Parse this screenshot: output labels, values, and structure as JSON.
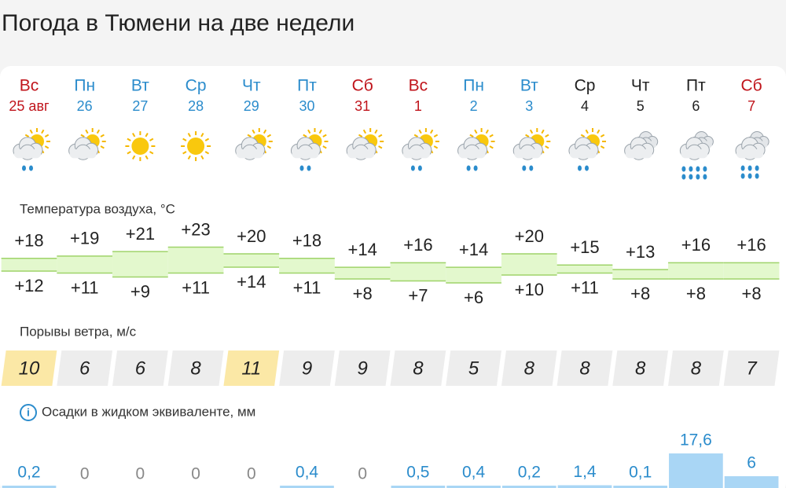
{
  "title": "Погода в Тюмени на две недели",
  "labels": {
    "temperature": "Температура воздуха, °C",
    "wind": "Порывы ветра, м/с",
    "precip": "Осадки в жидком эквиваленте, мм",
    "info": "i"
  },
  "days": [
    {
      "weekday": "Вс",
      "date": "25 авг",
      "color": "#c0141b",
      "icon": "partly-rain",
      "tmax": {
        "value": 18,
        "label": "+18"
      },
      "tmin": {
        "value": 12,
        "label": "+12"
      },
      "wind": 10,
      "wind_color": "#fbe8a6",
      "precip": {
        "value": 0.2,
        "label": "0,2"
      }
    },
    {
      "weekday": "Пн",
      "date": "26",
      "color": "#2b8ccc",
      "icon": "partly",
      "tmax": {
        "value": 19,
        "label": "+19"
      },
      "tmin": {
        "value": 11,
        "label": "+11"
      },
      "wind": 6,
      "wind_color": "#ededed",
      "precip": {
        "value": 0,
        "label": "0"
      }
    },
    {
      "weekday": "Вт",
      "date": "27",
      "color": "#2b8ccc",
      "icon": "sun",
      "tmax": {
        "value": 21,
        "label": "+21"
      },
      "tmin": {
        "value": 9,
        "label": "+9"
      },
      "wind": 6,
      "wind_color": "#ededed",
      "precip": {
        "value": 0,
        "label": "0"
      }
    },
    {
      "weekday": "Ср",
      "date": "28",
      "color": "#2b8ccc",
      "icon": "sun",
      "tmax": {
        "value": 23,
        "label": "+23"
      },
      "tmin": {
        "value": 11,
        "label": "+11"
      },
      "wind": 8,
      "wind_color": "#ededed",
      "precip": {
        "value": 0,
        "label": "0"
      }
    },
    {
      "weekday": "Чт",
      "date": "29",
      "color": "#2b8ccc",
      "icon": "partly",
      "tmax": {
        "value": 20,
        "label": "+20"
      },
      "tmin": {
        "value": 14,
        "label": "+14"
      },
      "wind": 11,
      "wind_color": "#fbe8a6",
      "precip": {
        "value": 0,
        "label": "0"
      }
    },
    {
      "weekday": "Пт",
      "date": "30",
      "color": "#2b8ccc",
      "icon": "partly-rain",
      "tmax": {
        "value": 18,
        "label": "+18"
      },
      "tmin": {
        "value": 11,
        "label": "+11"
      },
      "wind": 9,
      "wind_color": "#ededed",
      "precip": {
        "value": 0.4,
        "label": "0,4"
      }
    },
    {
      "weekday": "Сб",
      "date": "31",
      "color": "#c0141b",
      "icon": "partly",
      "tmax": {
        "value": 14,
        "label": "+14"
      },
      "tmin": {
        "value": 8,
        "label": "+8"
      },
      "wind": 9,
      "wind_color": "#ededed",
      "precip": {
        "value": 0,
        "label": "0"
      }
    },
    {
      "weekday": "Вс",
      "date": "1",
      "color": "#c0141b",
      "icon": "partly-rain",
      "tmax": {
        "value": 16,
        "label": "+16"
      },
      "tmin": {
        "value": 7,
        "label": "+7"
      },
      "wind": 8,
      "wind_color": "#ededed",
      "precip": {
        "value": 0.5,
        "label": "0,5"
      }
    },
    {
      "weekday": "Пн",
      "date": "2",
      "color": "#2b8ccc",
      "icon": "partly-rain",
      "tmax": {
        "value": 14,
        "label": "+14"
      },
      "tmin": {
        "value": 6,
        "label": "+6"
      },
      "wind": 5,
      "wind_color": "#ededed",
      "precip": {
        "value": 0.4,
        "label": "0,4"
      }
    },
    {
      "weekday": "Вт",
      "date": "3",
      "color": "#2b8ccc",
      "icon": "partly-rain",
      "tmax": {
        "value": 20,
        "label": "+20"
      },
      "tmin": {
        "value": 10,
        "label": "+10"
      },
      "wind": 8,
      "wind_color": "#ededed",
      "precip": {
        "value": 0.2,
        "label": "0,2"
      }
    },
    {
      "weekday": "Ср",
      "date": "4",
      "color": "#222222",
      "icon": "partly-rain",
      "tmax": {
        "value": 15,
        "label": "+15"
      },
      "tmin": {
        "value": 11,
        "label": "+11"
      },
      "wind": 8,
      "wind_color": "#ededed",
      "precip": {
        "value": 1.4,
        "label": "1,4"
      }
    },
    {
      "weekday": "Чт",
      "date": "5",
      "color": "#222222",
      "icon": "cloud",
      "tmax": {
        "value": 13,
        "label": "+13"
      },
      "tmin": {
        "value": 8,
        "label": "+8"
      },
      "wind": 8,
      "wind_color": "#ededed",
      "precip": {
        "value": 0.1,
        "label": "0,1"
      }
    },
    {
      "weekday": "Пт",
      "date": "6",
      "color": "#222222",
      "icon": "cloud-heavy-rain",
      "tmax": {
        "value": 16,
        "label": "+16"
      },
      "tmin": {
        "value": 8,
        "label": "+8"
      },
      "wind": 8,
      "wind_color": "#ededed",
      "precip": {
        "value": 17.6,
        "label": "17,6"
      }
    },
    {
      "weekday": "Сб",
      "date": "7",
      "color": "#c0141b",
      "icon": "cloud-rain",
      "tmax": {
        "value": 16,
        "label": "+16"
      },
      "tmin": {
        "value": 8,
        "label": "+8"
      },
      "wind": 7,
      "wind_color": "#ededed",
      "precip": {
        "value": 6,
        "label": "6"
      }
    }
  ]
}
